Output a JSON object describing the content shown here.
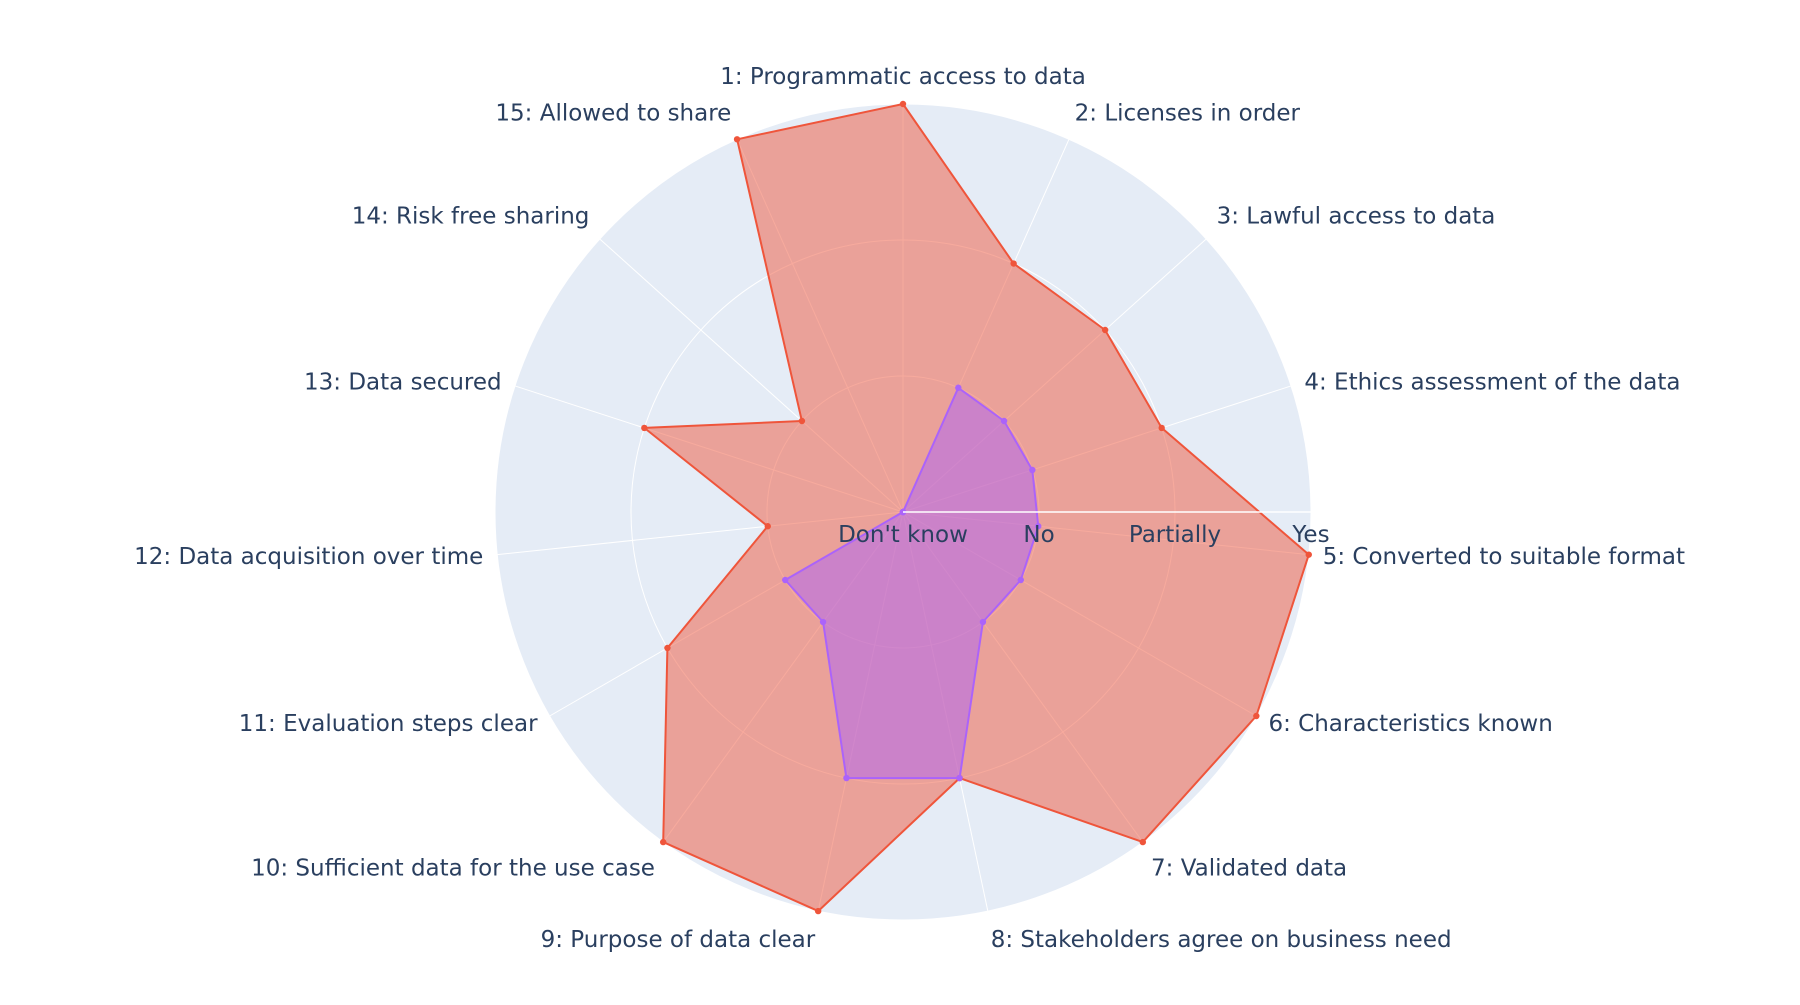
{
  "chart_data": {
    "type": "radar",
    "categories": [
      "1: Programmatic access to data",
      "2: Licenses in order",
      "3: Lawful access to data",
      "4: Ethics assessment of the data",
      "5: Converted to suitable format",
      "6: Characteristics known",
      "7: Validated data",
      "8: Stakeholders agree on business need",
      "9: Purpose of data clear",
      "10: Sufficient data for the use case",
      "11: Evaluation steps clear",
      "12: Data acquisition over time",
      "13: Data secured",
      "14: Risk free sharing",
      "15: Allowed to share"
    ],
    "radial_ticks": [
      "Don't know",
      "No",
      "Partially",
      "Yes"
    ],
    "radial_range": [
      0,
      3
    ],
    "series": [
      {
        "color": "#EF553B",
        "fill": "rgba(239,85,59,0.5)",
        "values": [
          3,
          2,
          2,
          2,
          3,
          3,
          3,
          2,
          3,
          3,
          2,
          1,
          2,
          1,
          3
        ]
      },
      {
        "color": "#AB63FA",
        "fill": "rgba(171,99,250,0.5)",
        "values": [
          0,
          1,
          1,
          1,
          1,
          1,
          1,
          2,
          2,
          1,
          1,
          0,
          0,
          0,
          0
        ]
      }
    ],
    "grid": true,
    "legend": "none"
  }
}
